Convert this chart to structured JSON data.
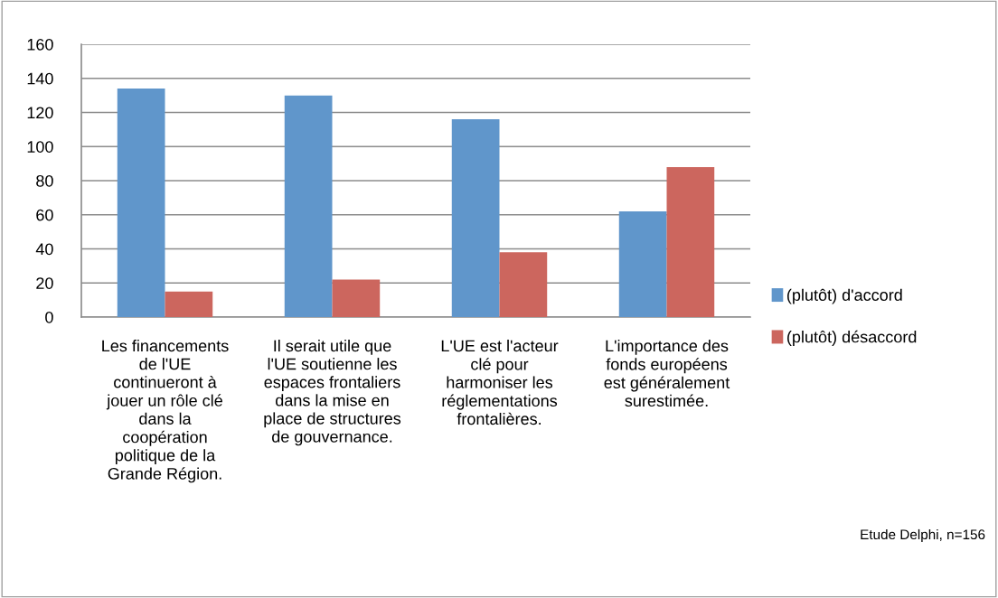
{
  "chart_data": {
    "type": "bar",
    "categories": [
      "Les financements\nde l'UE\ncontinueront à\njouer un rôle clé\ndans la\ncoopération\npolitique de la\nGrande Région.",
      "Il serait utile que\nl'UE soutienne les\nespaces frontaliers\ndans la mise en\nplace de structures\nde gouvernance.",
      "L'UE est l'acteur\nclé pour\nharmoniser les\nréglementations\nfrontalières.",
      "L'importance des\nfonds européens\nest généralement\nsurestimée."
    ],
    "series": [
      {
        "name": "(plutôt) d'accord",
        "color": "#6096cb",
        "values": [
          134,
          130,
          116,
          62
        ]
      },
      {
        "name": "(plutôt) désaccord",
        "color": "#cc665e",
        "values": [
          15,
          22,
          38,
          88
        ]
      }
    ],
    "ylim": [
      0,
      160
    ],
    "yticks": [
      0,
      20,
      40,
      60,
      80,
      100,
      120,
      140,
      160
    ],
    "grid": "y",
    "legend": "right",
    "annotations": [
      "Etude Delphi, n=156"
    ]
  }
}
